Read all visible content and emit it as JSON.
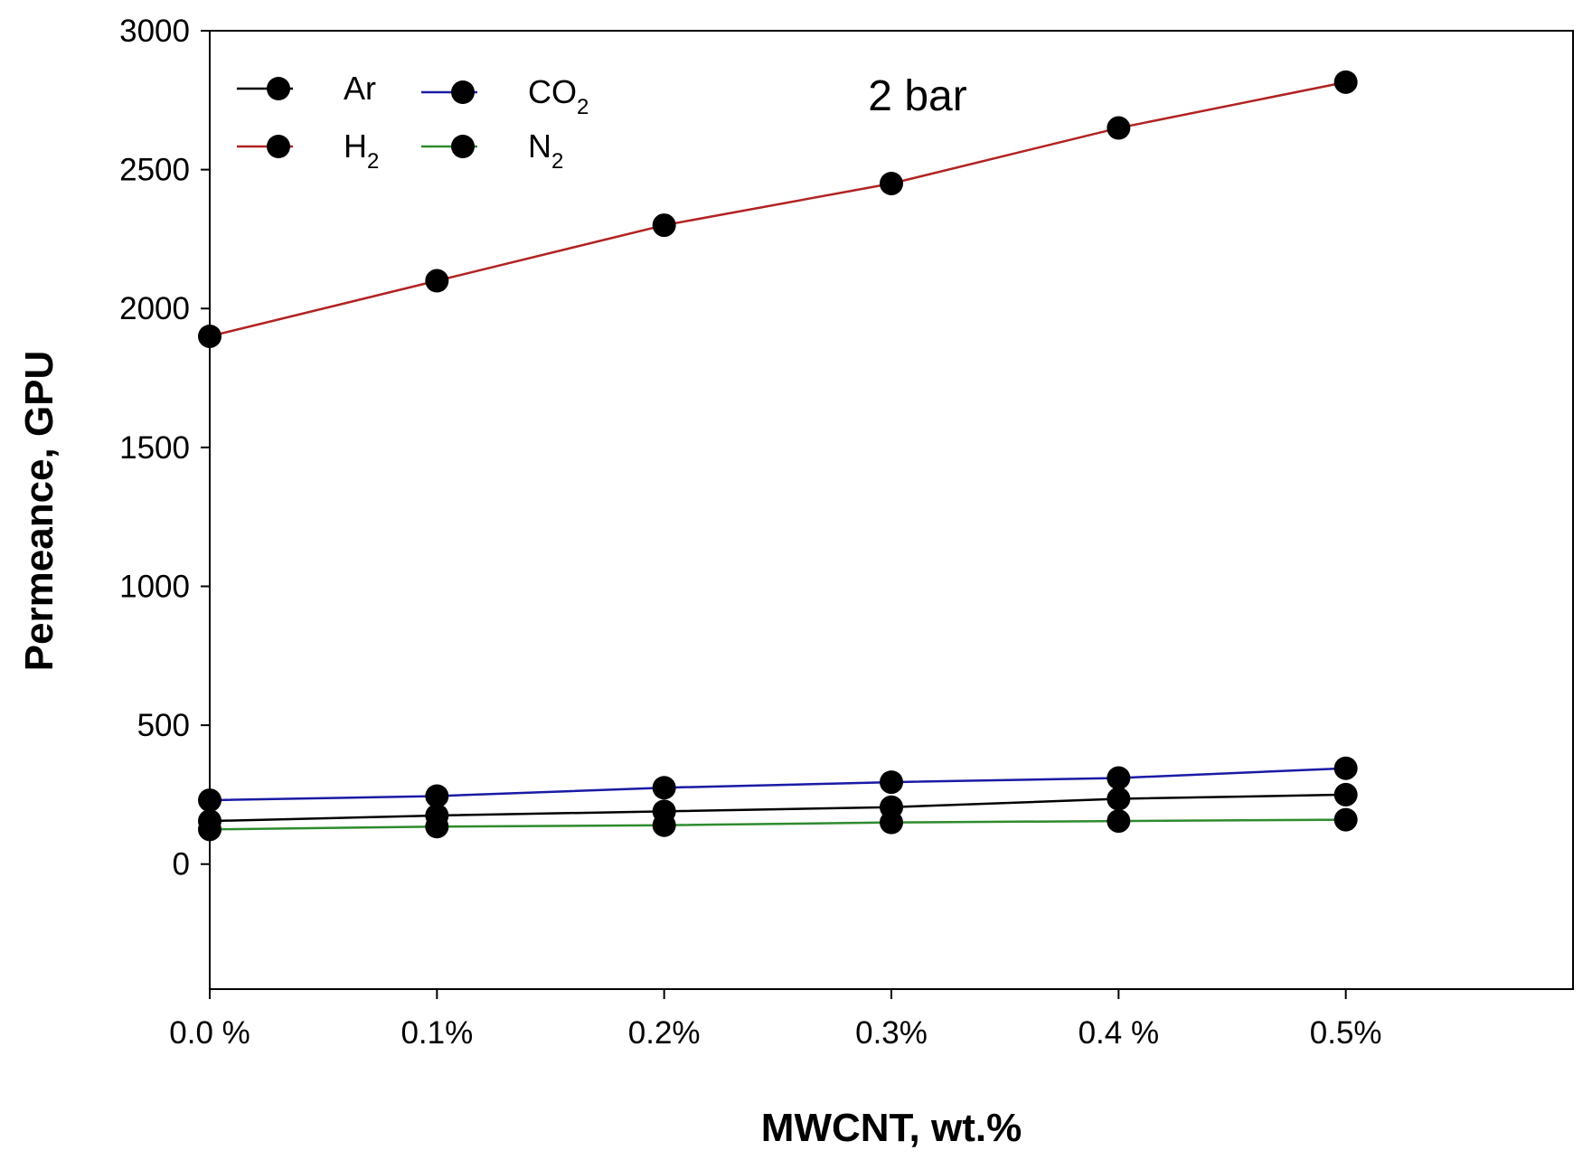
{
  "chart_data": {
    "type": "line",
    "title": "",
    "annotation": "2 bar",
    "xlabel": "MWCNT, wt.%",
    "ylabel": "Permeance, GPU",
    "categories": [
      "0.0 %",
      "0.1%",
      "0.2%",
      "0.3%",
      "0.4 %",
      "0.5%"
    ],
    "x": [
      0,
      0.1,
      0.2,
      0.3,
      0.4,
      0.5
    ],
    "xlim": [
      0,
      0.6
    ],
    "ylim": [
      -450,
      3000
    ],
    "yticks": [
      0,
      500,
      1000,
      1500,
      2000,
      2500,
      3000
    ],
    "grid": false,
    "legend_position": "top-left",
    "series": [
      {
        "name": "Ar",
        "base": "Ar",
        "sub": "",
        "color": "#000000",
        "values": [
          155,
          175,
          190,
          205,
          235,
          250
        ]
      },
      {
        "name": "CO2",
        "base": "CO",
        "sub": "2",
        "color": "#1a1aa6",
        "values": [
          230,
          245,
          275,
          295,
          310,
          345
        ]
      },
      {
        "name": "H2",
        "base": "H",
        "sub": "2",
        "color": "#b22222",
        "values": [
          1900,
          2100,
          2300,
          2450,
          2650,
          2815
        ]
      },
      {
        "name": "N2",
        "base": "N",
        "sub": "2",
        "color": "#2e8b2e",
        "values": [
          125,
          135,
          140,
          150,
          155,
          160
        ]
      }
    ]
  }
}
